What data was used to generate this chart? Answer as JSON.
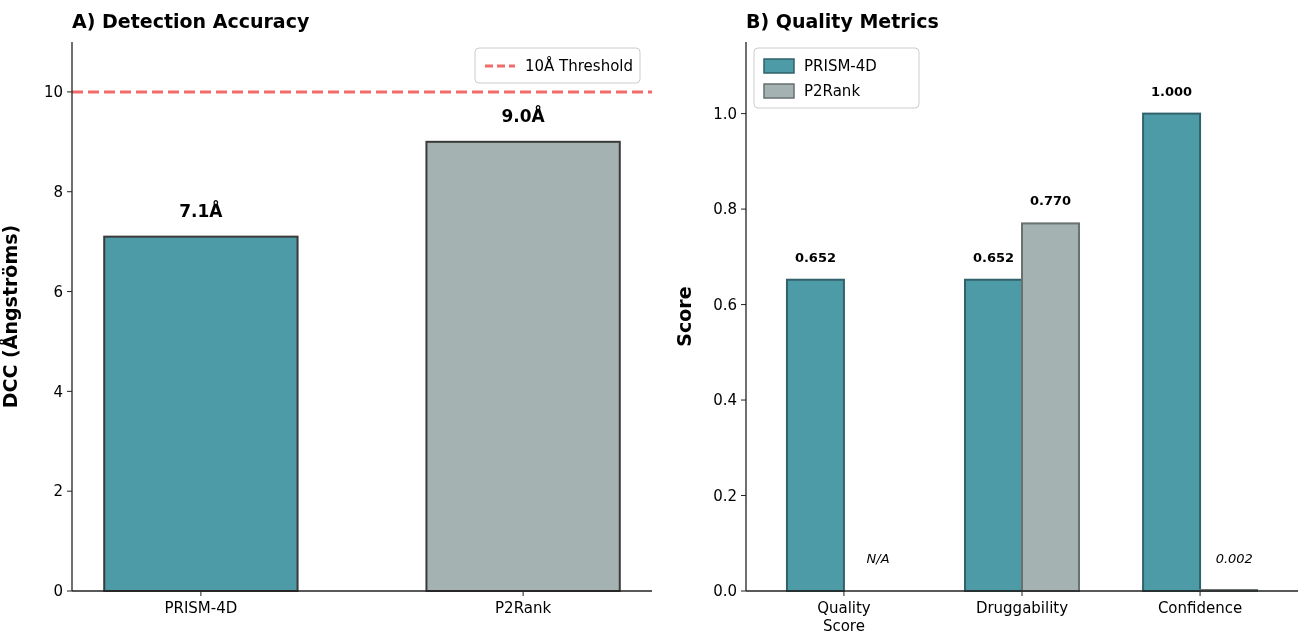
{
  "chart_data": [
    {
      "type": "bar",
      "title": "A) Detection Accuracy",
      "ylabel": "DCC (Ångströms)",
      "categories": [
        "PRISM-4D",
        "P2Rank"
      ],
      "values": [
        7.1,
        9.0
      ],
      "colors": [
        "#4e9ba8",
        "#a5b2b2"
      ],
      "value_labels": [
        "7.1Å",
        "9.0Å"
      ],
      "ylim": [
        0,
        11
      ],
      "yticks": [
        0,
        2,
        4,
        6,
        8,
        10
      ],
      "ref_lines": [
        {
          "axis": "y",
          "value": 10,
          "label": "10Å Threshold",
          "color": "#f26b6b",
          "line_style": "dashed"
        }
      ],
      "legend": "top right",
      "grid": false
    },
    {
      "type": "bar",
      "title": "B) Quality Metrics",
      "ylabel": "Score",
      "categories": [
        "Quality\nScore",
        "Druggability",
        "Confidence"
      ],
      "series": [
        {
          "name": "PRISM-4D",
          "color": "#4e9ba8",
          "values": [
            0.652,
            0.652,
            1.0
          ],
          "value_labels": [
            "0.652",
            "0.652",
            "1.000"
          ]
        },
        {
          "name": "P2Rank",
          "color": "#a5b2b2",
          "values": [
            null,
            0.77,
            0.002
          ],
          "value_labels": [
            "N/A",
            "0.770",
            "0.002"
          ]
        }
      ],
      "ylim": [
        0,
        1.15
      ],
      "yticks": [
        {
          "value": 0,
          "label": "0.0"
        },
        0.2,
        0.4,
        0.6,
        0.8,
        {
          "value": 1,
          "label": "1.0"
        }
      ],
      "legend": "top left",
      "grid": false
    }
  ]
}
